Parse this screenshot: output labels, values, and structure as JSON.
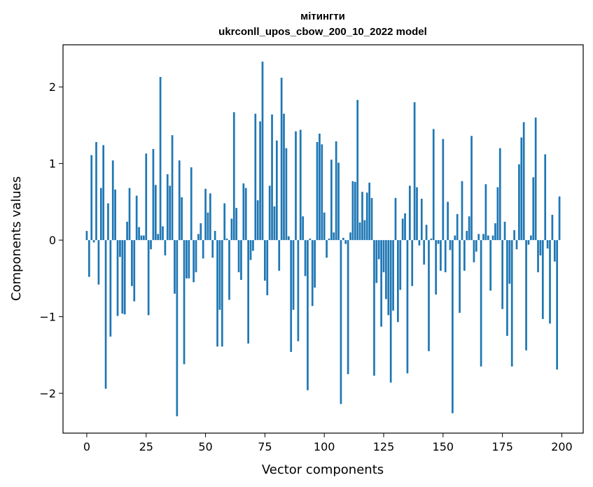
{
  "chart_data": {
    "type": "bar",
    "title_line1": "мітингти",
    "title_line2": "ukrconll_upos_cbow_200_10_2022 model",
    "xlabel": "Vector components",
    "ylabel": "Components values",
    "xlim": [
      -10,
      209
    ],
    "ylim": [
      -2.52,
      2.55
    ],
    "xticks": [
      0,
      25,
      50,
      75,
      100,
      125,
      150,
      175,
      200
    ],
    "yticks": [
      -2,
      -1,
      0,
      1,
      2
    ],
    "color": "#1f77b4",
    "grid": false,
    "legend": "none",
    "x": [
      0,
      1,
      2,
      3,
      4,
      5,
      6,
      7,
      8,
      9,
      10,
      11,
      12,
      13,
      14,
      15,
      16,
      17,
      18,
      19,
      20,
      21,
      22,
      23,
      24,
      25,
      26,
      27,
      28,
      29,
      30,
      31,
      32,
      33,
      34,
      35,
      36,
      37,
      38,
      39,
      40,
      41,
      42,
      43,
      44,
      45,
      46,
      47,
      48,
      49,
      50,
      51,
      52,
      53,
      54,
      55,
      56,
      57,
      58,
      59,
      60,
      61,
      62,
      63,
      64,
      65,
      66,
      67,
      68,
      69,
      70,
      71,
      72,
      73,
      74,
      75,
      76,
      77,
      78,
      79,
      80,
      81,
      82,
      83,
      84,
      85,
      86,
      87,
      88,
      89,
      90,
      91,
      92,
      93,
      94,
      95,
      96,
      97,
      98,
      99,
      100,
      101,
      102,
      103,
      104,
      105,
      106,
      107,
      108,
      109,
      110,
      111,
      112,
      113,
      114,
      115,
      116,
      117,
      118,
      119,
      120,
      121,
      122,
      123,
      124,
      125,
      126,
      127,
      128,
      129,
      130,
      131,
      132,
      133,
      134,
      135,
      136,
      137,
      138,
      139,
      140,
      141,
      142,
      143,
      144,
      145,
      146,
      147,
      148,
      149,
      150,
      151,
      152,
      153,
      154,
      155,
      156,
      157,
      158,
      159,
      160,
      161,
      162,
      163,
      164,
      165,
      166,
      167,
      168,
      169,
      170,
      171,
      172,
      173,
      174,
      175,
      176,
      177,
      178,
      179,
      180,
      181,
      182,
      183,
      184,
      185,
      186,
      187,
      188,
      189,
      190,
      191,
      192,
      193,
      194,
      195,
      196,
      197,
      198,
      199
    ],
    "values": [
      0.12,
      -0.48,
      1.11,
      -0.03,
      1.28,
      -0.58,
      0.68,
      1.24,
      -1.94,
      0.48,
      -1.26,
      1.04,
      0.66,
      -0.99,
      -0.22,
      -0.96,
      -0.97,
      0.24,
      0.68,
      -0.6,
      -0.8,
      0.58,
      0.17,
      0.06,
      0.06,
      1.13,
      -0.98,
      -0.12,
      1.19,
      0.72,
      0.08,
      2.13,
      0.18,
      -0.2,
      0.86,
      0.71,
      1.37,
      -0.7,
      -2.3,
      1.04,
      0.56,
      -1.62,
      -0.5,
      -0.5,
      0.95,
      -0.55,
      -0.42,
      0.08,
      0.22,
      -0.24,
      0.67,
      0.36,
      0.61,
      -0.23,
      0.12,
      -1.39,
      -0.91,
      -1.39,
      0.48,
      0.02,
      -0.78,
      0.28,
      1.67,
      0.42,
      -0.42,
      -0.52,
      0.74,
      0.68,
      -1.35,
      -0.26,
      -0.14,
      1.65,
      0.52,
      1.55,
      2.33,
      -0.53,
      -0.72,
      0.71,
      1.64,
      0.44,
      1.3,
      -0.4,
      2.12,
      1.65,
      1.2,
      0.05,
      -1.46,
      -0.91,
      1.42,
      -1.32,
      1.44,
      0.31,
      -0.47,
      -1.96,
      0.02,
      -0.86,
      -0.62,
      1.28,
      1.39,
      1.25,
      0.36,
      -0.23,
      0.02,
      1.05,
      0.1,
      1.29,
      1.01,
      -2.14,
      0.03,
      -0.05,
      -1.75,
      0.1,
      0.77,
      0.76,
      1.83,
      0.23,
      0.63,
      0.26,
      0.62,
      0.75,
      0.55,
      -1.77,
      -0.56,
      -0.25,
      -1.13,
      -0.42,
      -0.77,
      -0.98,
      -1.86,
      -0.92,
      0.55,
      -1.07,
      -0.65,
      0.28,
      0.35,
      -1.74,
      0.71,
      -0.6,
      1.8,
      0.69,
      -0.07,
      0.54,
      -0.32,
      0.2,
      -1.45,
      0.02,
      1.45,
      -0.71,
      -0.05,
      -0.4,
      1.32,
      -0.42,
      0.5,
      -0.13,
      -2.26,
      0.06,
      0.34,
      -0.95,
      0.77,
      -0.4,
      0.12,
      0.31,
      1.36,
      -0.29,
      -0.15,
      0.08,
      -1.65,
      0.08,
      0.73,
      0.06,
      -0.66,
      0.06,
      0.22,
      0.69,
      1.2,
      -0.9,
      0.24,
      -1.25,
      -0.57,
      -1.65,
      0.13,
      -0.12,
      0.99,
      1.34,
      1.54,
      -1.44,
      -0.06,
      0.06,
      0.82,
      1.6,
      -0.42,
      -0.2,
      -1.03,
      1.12,
      -0.11,
      -1.09,
      0.33,
      -0.28,
      -1.69,
      0.57
    ]
  }
}
